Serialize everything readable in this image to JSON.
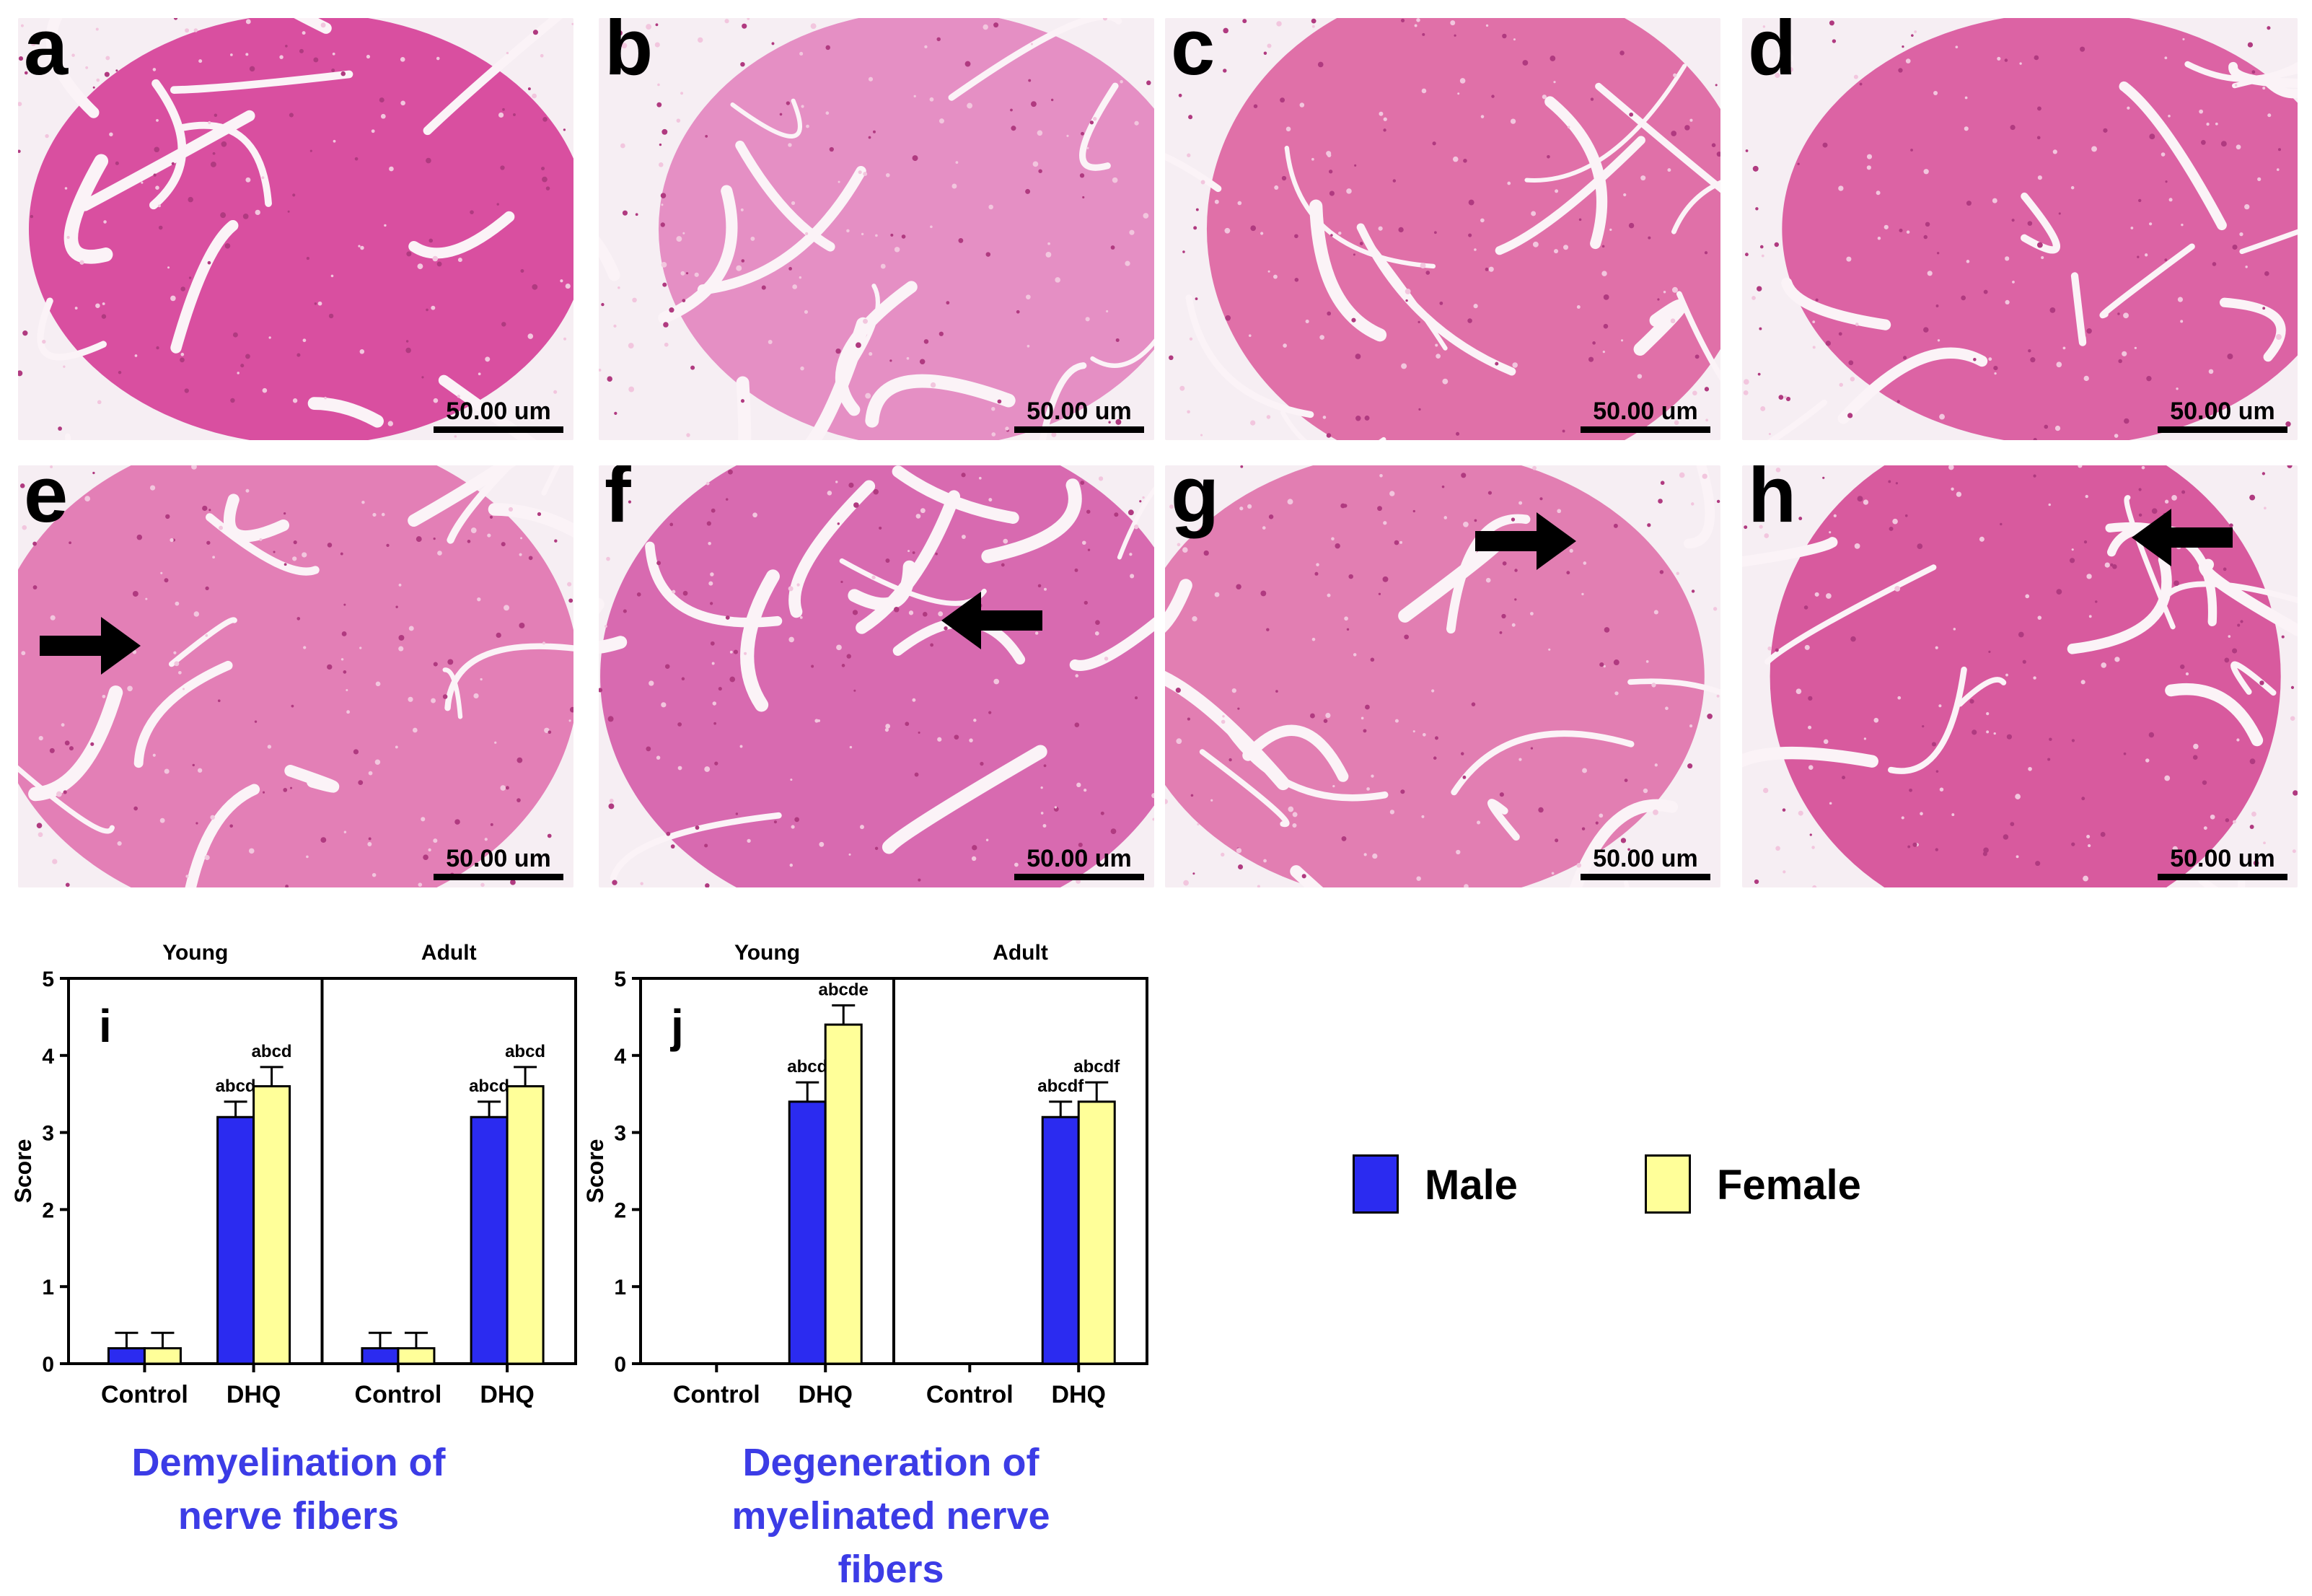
{
  "panels": [
    {
      "label": "a",
      "scale": "50.00 um",
      "arrow": null,
      "tone": "#d94fa0"
    },
    {
      "label": "b",
      "scale": "50.00 um",
      "arrow": null,
      "tone": "#e58fc4"
    },
    {
      "label": "c",
      "scale": "50.00 um",
      "arrow": null,
      "tone": "#e070a8"
    },
    {
      "label": "d",
      "scale": "50.00 um",
      "arrow": null,
      "tone": "#dc63a4"
    },
    {
      "label": "e",
      "scale": "50.00 um",
      "arrow": "right",
      "tone": "#e37fb6"
    },
    {
      "label": "f",
      "scale": "50.00 um",
      "arrow": "left",
      "tone": "#d86ab0"
    },
    {
      "label": "g",
      "scale": "50.00 um",
      "arrow": "right",
      "tone": "#e27eb2"
    },
    {
      "label": "h",
      "scale": "50.00 um",
      "arrow": "left",
      "tone": "#d85a9e"
    }
  ],
  "chart_data": [
    {
      "type": "bar",
      "panel_label": "i",
      "caption": "Demyelination of nerve fibers",
      "ylabel": "Score",
      "ylim": [
        0,
        5
      ],
      "yticks": [
        0,
        1,
        2,
        3,
        4,
        5
      ],
      "groups": [
        {
          "name": "Young",
          "categories": [
            "Control",
            "DHQ"
          ],
          "series": [
            {
              "name": "Male",
              "values": [
                0.2,
                3.2
              ],
              "errors": [
                0.2,
                0.2
              ],
              "annotations": [
                "",
                "abcd"
              ]
            },
            {
              "name": "Female",
              "values": [
                0.2,
                3.6
              ],
              "errors": [
                0.2,
                0.25
              ],
              "annotations": [
                "",
                "abcd"
              ]
            }
          ]
        },
        {
          "name": "Adult",
          "categories": [
            "Control",
            "DHQ"
          ],
          "series": [
            {
              "name": "Male",
              "values": [
                0.2,
                3.2
              ],
              "errors": [
                0.2,
                0.2
              ],
              "annotations": [
                "",
                "abcd"
              ]
            },
            {
              "name": "Female",
              "values": [
                0.2,
                3.6
              ],
              "errors": [
                0.2,
                0.25
              ],
              "annotations": [
                "",
                "abcd"
              ]
            }
          ]
        }
      ]
    },
    {
      "type": "bar",
      "panel_label": "j",
      "caption": "Degeneration of myelinated nerve fibers",
      "ylabel": "Score",
      "ylim": [
        0,
        5
      ],
      "yticks": [
        0,
        1,
        2,
        3,
        4,
        5
      ],
      "groups": [
        {
          "name": "Young",
          "categories": [
            "Control",
            "DHQ"
          ],
          "series": [
            {
              "name": "Male",
              "values": [
                0,
                3.4
              ],
              "errors": [
                0,
                0.25
              ],
              "annotations": [
                "",
                "abcd"
              ]
            },
            {
              "name": "Female",
              "values": [
                0,
                4.4
              ],
              "errors": [
                0,
                0.25
              ],
              "annotations": [
                "",
                "abcde"
              ]
            }
          ]
        },
        {
          "name": "Adult",
          "categories": [
            "Control",
            "DHQ"
          ],
          "series": [
            {
              "name": "Male",
              "values": [
                0,
                3.2
              ],
              "errors": [
                0,
                0.2
              ],
              "annotations": [
                "",
                "abcdf"
              ]
            },
            {
              "name": "Female",
              "values": [
                0,
                3.4
              ],
              "errors": [
                0,
                0.25
              ],
              "annotations": [
                "",
                "abcdf"
              ]
            }
          ]
        }
      ]
    }
  ],
  "legend": [
    {
      "name": "Male",
      "color": "#2b2bf0"
    },
    {
      "name": "Female",
      "color": "#ffff99"
    }
  ],
  "colors": {
    "male": "#2b2bf0",
    "female": "#ffff99",
    "caption": "#3c3ce6"
  }
}
